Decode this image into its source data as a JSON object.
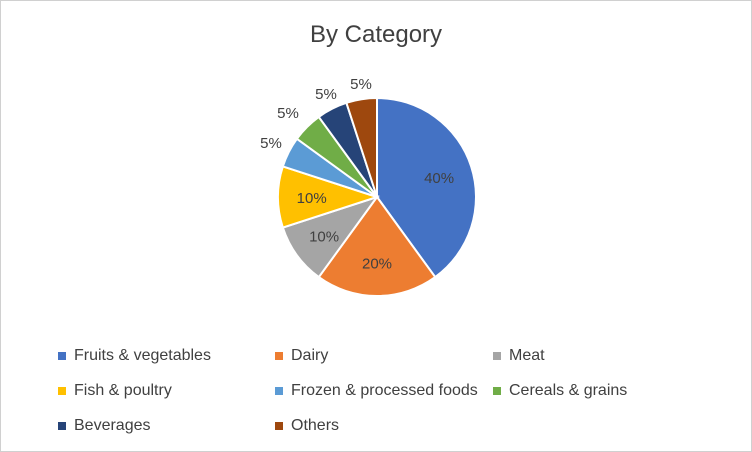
{
  "chart_data": {
    "type": "pie",
    "title": "By Category",
    "categories": [
      "Fruits & vegetables",
      "Dairy",
      "Meat",
      "Fish & poultry",
      "Frozen & processed foods",
      "Cereals & grains",
      "Beverages",
      "Others"
    ],
    "values": [
      40,
      20,
      10,
      10,
      5,
      5,
      5,
      5
    ],
    "labels": [
      "40%",
      "20%",
      "10%",
      "10%",
      "5%",
      "5%",
      "5%",
      "5%"
    ],
    "colors": [
      "#4472c4",
      "#ed7d31",
      "#a5a5a5",
      "#ffc000",
      "#5b9bd5",
      "#70ad47",
      "#264478",
      "#9e480e"
    ],
    "legend_position": "bottom"
  }
}
